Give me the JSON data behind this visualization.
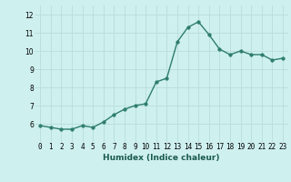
{
  "x": [
    0,
    1,
    2,
    3,
    4,
    5,
    6,
    7,
    8,
    9,
    10,
    11,
    12,
    13,
    14,
    15,
    16,
    17,
    18,
    19,
    20,
    21,
    22,
    23
  ],
  "y": [
    5.9,
    5.8,
    5.7,
    5.7,
    5.9,
    5.8,
    6.1,
    6.5,
    6.8,
    7.0,
    7.1,
    8.3,
    8.5,
    10.5,
    11.3,
    11.6,
    10.9,
    10.1,
    9.8,
    10.0,
    9.8,
    9.8,
    9.5,
    9.6
  ],
  "xlabel": "Humidex (Indice chaleur)",
  "bg_color": "#cef0ef",
  "line_color": "#2e7d6e",
  "marker_color": "#2e7d6e",
  "grid_color": "#b8deda",
  "ylim": [
    5.0,
    12.5
  ],
  "yticks": [
    6,
    7,
    8,
    9,
    10,
    11,
    12
  ],
  "xticks": [
    0,
    1,
    2,
    3,
    4,
    5,
    6,
    7,
    8,
    9,
    10,
    11,
    12,
    13,
    14,
    15,
    16,
    17,
    18,
    19,
    20,
    21,
    22,
    23
  ],
  "line_width": 1.0,
  "marker_size": 2.5,
  "tick_fontsize": 5.5,
  "xlabel_fontsize": 6.5
}
